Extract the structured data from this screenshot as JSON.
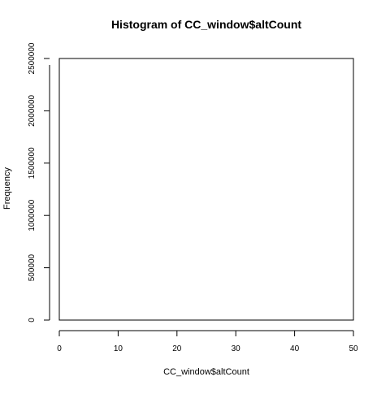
{
  "chart_data": {
    "type": "bar",
    "title": "Histogram of CC_window$altCount",
    "xlabel": "CC_window$altCount",
    "ylabel": "Frequency",
    "xlim": [
      0,
      50
    ],
    "ylim": [
      0,
      2500000
    ],
    "x_ticks": [
      0,
      10,
      20,
      30,
      40,
      50
    ],
    "x_tick_labels": [
      "0",
      "10",
      "20",
      "30",
      "40",
      "50"
    ],
    "y_ticks": [
      0,
      500000,
      1000000,
      1500000,
      2000000,
      2500000
    ],
    "y_tick_labels": [
      "0",
      "500000",
      "1000000",
      "1500000",
      "2000000",
      "2500000"
    ],
    "bins": [],
    "grid": false,
    "legend": "none",
    "colors": {
      "background": "#ffffff",
      "frame": "#000000",
      "text": "#000000"
    }
  }
}
